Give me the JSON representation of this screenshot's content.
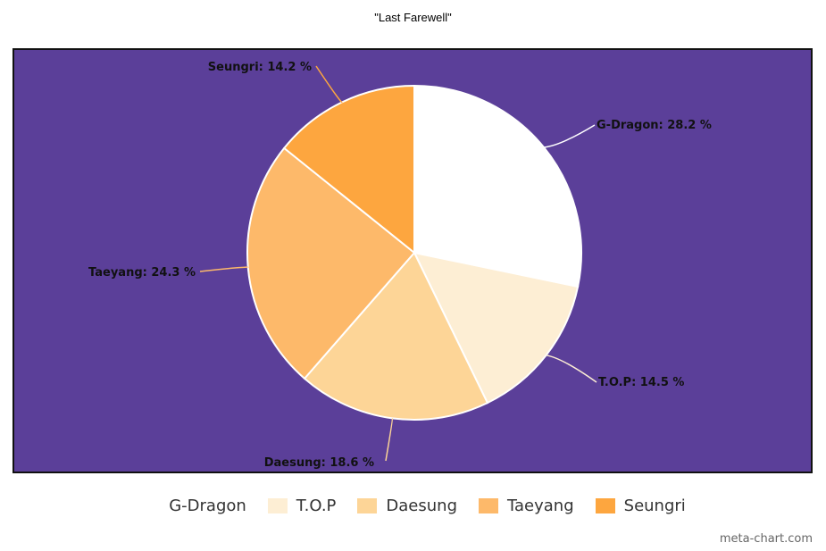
{
  "chart_data": {
    "type": "pie",
    "title": "\"Last Farewell\"",
    "categories": [
      "G-Dragon",
      "T.O.P",
      "Daesung",
      "Taeyang",
      "Seungri"
    ],
    "values": [
      28.2,
      14.5,
      18.6,
      24.3,
      14.2
    ],
    "labels": [
      "G-Dragon: 28.2 %",
      "T.O.P: 14.5 %",
      "Daesung: 18.6 %",
      "Taeyang: 24.3 %",
      "Seungri: 14.2 %"
    ],
    "colors": [
      "#ffffff",
      "#fdeed4",
      "#fdd597",
      "#fdb96a",
      "#fda63f"
    ],
    "plot_background": "#5b3f99",
    "legend_position": "bottom",
    "start_angle_deg": 0,
    "direction": "clockwise"
  },
  "watermark": "meta-chart.com"
}
